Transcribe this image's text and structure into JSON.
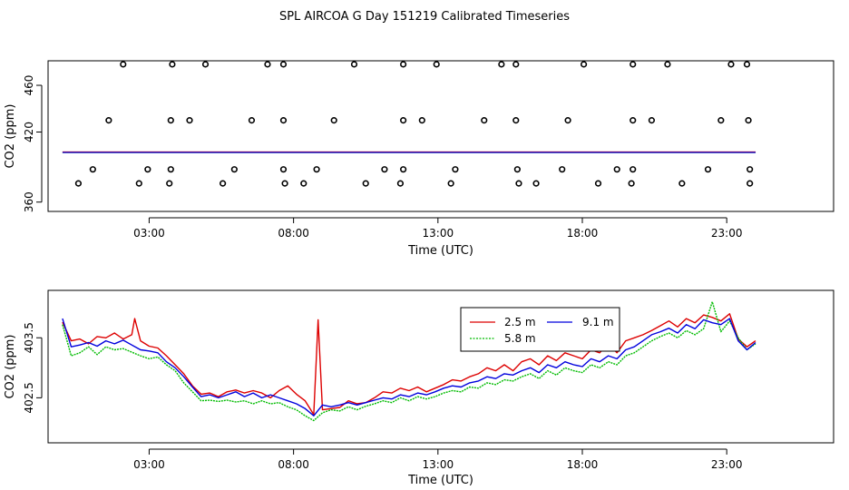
{
  "title": "SPL AIRCOA G  Day 151219  Calibrated Timeseries",
  "colors": {
    "2.5 m": "#dd0000",
    "5.8 m": "#00bb00",
    "9.1 m": "#0000dd",
    "flags": "#000000"
  },
  "chart_data": [
    {
      "type": "scatter",
      "xlabel": "Time (UTC)",
      "ylabel": "CO2 (ppm)",
      "xlim": [
        -0.5,
        26.7
      ],
      "ylim": [
        352,
        481
      ],
      "xticks": [
        3,
        8,
        13,
        18,
        23
      ],
      "xtick_labels": [
        "03:00",
        "08:00",
        "13:00",
        "18:00",
        "23:00"
      ],
      "yticks": [
        360,
        420,
        460
      ],
      "ytick_labels": [
        "360",
        "420",
        "460"
      ],
      "flags": {
        "y478": [
          2.1,
          3.8,
          4.95,
          7.1,
          7.65,
          10.1,
          11.8,
          12.95,
          15.2,
          15.7,
          18.05,
          19.75,
          20.95,
          23.15,
          23.7
        ],
        "y430": [
          1.6,
          3.75,
          4.4,
          6.55,
          7.65,
          9.4,
          11.8,
          12.45,
          14.6,
          15.7,
          17.5,
          19.75,
          20.4,
          22.8,
          23.75
        ],
        "y388": [
          1.05,
          2.95,
          3.75,
          5.95,
          7.65,
          8.8,
          11.15,
          11.8,
          13.6,
          15.75,
          17.3,
          19.2,
          19.75,
          22.35,
          23.8
        ],
        "y376": [
          0.55,
          2.65,
          3.7,
          5.55,
          7.7,
          8.35,
          10.5,
          11.7,
          13.45,
          15.8,
          16.4,
          18.55,
          19.7,
          21.45,
          23.8
        ]
      },
      "baseline_level": 402.5
    },
    {
      "type": "line",
      "xlabel": "Time (UTC)",
      "ylabel": "CO2 (ppm)",
      "xlim": [
        -0.5,
        26.7
      ],
      "ylim": [
        401.75,
        404.29
      ],
      "xticks": [
        3,
        8,
        13,
        18,
        23
      ],
      "xtick_labels": [
        "03:00",
        "08:00",
        "13:00",
        "18:00",
        "23:00"
      ],
      "yticks": [
        402.5,
        403.5
      ],
      "ytick_labels": [
        "402.5",
        "403.5"
      ],
      "legend_position": "top-center",
      "series": [
        {
          "name": "2.5 m",
          "points": [
            [
              0,
              403.76
            ],
            [
              0.3,
              403.45
            ],
            [
              0.6,
              403.48
            ],
            [
              0.9,
              403.4
            ],
            [
              1.2,
              403.52
            ],
            [
              1.5,
              403.5
            ],
            [
              1.8,
              403.58
            ],
            [
              2.1,
              403.48
            ],
            [
              2.4,
              403.55
            ],
            [
              2.5,
              403.82
            ],
            [
              2.7,
              403.45
            ],
            [
              3,
              403.36
            ],
            [
              3.3,
              403.33
            ],
            [
              3.6,
              403.2
            ],
            [
              3.9,
              403.05
            ],
            [
              4.2,
              402.9
            ],
            [
              4.5,
              402.7
            ],
            [
              4.8,
              402.56
            ],
            [
              5.1,
              402.58
            ],
            [
              5.4,
              402.52
            ],
            [
              5.7,
              402.6
            ],
            [
              6,
              402.63
            ],
            [
              6.3,
              402.58
            ],
            [
              6.6,
              402.62
            ],
            [
              6.9,
              402.58
            ],
            [
              7.2,
              402.5
            ],
            [
              7.5,
              402.62
            ],
            [
              7.8,
              402.7
            ],
            [
              8.1,
              402.56
            ],
            [
              8.4,
              402.45
            ],
            [
              8.7,
              402.22
            ],
            [
              8.85,
              403.8
            ],
            [
              9.0,
              402.3
            ],
            [
              9.3,
              402.32
            ],
            [
              9.6,
              402.34
            ],
            [
              9.9,
              402.45
            ],
            [
              10.2,
              402.4
            ],
            [
              10.5,
              402.42
            ],
            [
              10.8,
              402.5
            ],
            [
              11.1,
              402.6
            ],
            [
              11.4,
              402.58
            ],
            [
              11.7,
              402.66
            ],
            [
              12,
              402.62
            ],
            [
              12.3,
              402.68
            ],
            [
              12.6,
              402.6
            ],
            [
              12.9,
              402.66
            ],
            [
              13.2,
              402.72
            ],
            [
              13.5,
              402.8
            ],
            [
              13.8,
              402.78
            ],
            [
              14.1,
              402.85
            ],
            [
              14.4,
              402.9
            ],
            [
              14.7,
              403.0
            ],
            [
              15,
              402.95
            ],
            [
              15.3,
              403.05
            ],
            [
              15.6,
              402.95
            ],
            [
              15.9,
              403.1
            ],
            [
              16.2,
              403.15
            ],
            [
              16.5,
              403.05
            ],
            [
              16.8,
              403.2
            ],
            [
              17.1,
              403.12
            ],
            [
              17.4,
              403.25
            ],
            [
              17.7,
              403.2
            ],
            [
              18,
              403.15
            ],
            [
              18.3,
              403.3
            ],
            [
              18.6,
              403.25
            ],
            [
              18.9,
              403.4
            ],
            [
              19.2,
              403.25
            ],
            [
              19.5,
              403.45
            ],
            [
              19.8,
              403.5
            ],
            [
              20.1,
              403.55
            ],
            [
              20.4,
              403.62
            ],
            [
              20.7,
              403.7
            ],
            [
              21,
              403.78
            ],
            [
              21.3,
              403.68
            ],
            [
              21.6,
              403.82
            ],
            [
              21.9,
              403.75
            ],
            [
              22.2,
              403.88
            ],
            [
              22.5,
              403.84
            ],
            [
              22.8,
              403.78
            ],
            [
              23.1,
              403.9
            ],
            [
              23.4,
              403.48
            ],
            [
              23.7,
              403.35
            ],
            [
              24,
              403.45
            ]
          ]
        },
        {
          "name": "5.8 m",
          "points": [
            [
              0,
              403.72
            ],
            [
              0.3,
              403.2
            ],
            [
              0.6,
              403.25
            ],
            [
              0.9,
              403.35
            ],
            [
              1.2,
              403.22
            ],
            [
              1.5,
              403.35
            ],
            [
              1.8,
              403.3
            ],
            [
              2.1,
              403.32
            ],
            [
              2.4,
              403.26
            ],
            [
              2.7,
              403.2
            ],
            [
              3,
              403.15
            ],
            [
              3.3,
              403.18
            ],
            [
              3.6,
              403.05
            ],
            [
              3.9,
              402.95
            ],
            [
              4.2,
              402.75
            ],
            [
              4.5,
              402.6
            ],
            [
              4.8,
              402.45
            ],
            [
              5.1,
              402.46
            ],
            [
              5.4,
              402.44
            ],
            [
              5.7,
              402.46
            ],
            [
              6,
              402.43
            ],
            [
              6.3,
              402.45
            ],
            [
              6.6,
              402.4
            ],
            [
              6.9,
              402.45
            ],
            [
              7.2,
              402.4
            ],
            [
              7.5,
              402.42
            ],
            [
              7.8,
              402.35
            ],
            [
              8.1,
              402.3
            ],
            [
              8.4,
              402.2
            ],
            [
              8.7,
              402.12
            ],
            [
              9.0,
              402.25
            ],
            [
              9.3,
              402.3
            ],
            [
              9.6,
              402.28
            ],
            [
              9.9,
              402.35
            ],
            [
              10.2,
              402.3
            ],
            [
              10.5,
              402.36
            ],
            [
              10.8,
              402.4
            ],
            [
              11.1,
              402.45
            ],
            [
              11.4,
              402.42
            ],
            [
              11.7,
              402.5
            ],
            [
              12,
              402.45
            ],
            [
              12.3,
              402.52
            ],
            [
              12.6,
              402.48
            ],
            [
              12.9,
              402.52
            ],
            [
              13.2,
              402.58
            ],
            [
              13.5,
              402.62
            ],
            [
              13.8,
              402.6
            ],
            [
              14.1,
              402.68
            ],
            [
              14.4,
              402.66
            ],
            [
              14.7,
              402.75
            ],
            [
              15,
              402.72
            ],
            [
              15.3,
              402.8
            ],
            [
              15.6,
              402.78
            ],
            [
              15.9,
              402.85
            ],
            [
              16.2,
              402.9
            ],
            [
              16.5,
              402.82
            ],
            [
              16.8,
              402.95
            ],
            [
              17.1,
              402.88
            ],
            [
              17.4,
              403.0
            ],
            [
              17.7,
              402.95
            ],
            [
              18,
              402.92
            ],
            [
              18.3,
              403.05
            ],
            [
              18.6,
              403.0
            ],
            [
              18.9,
              403.1
            ],
            [
              19.2,
              403.05
            ],
            [
              19.5,
              403.2
            ],
            [
              19.8,
              403.25
            ],
            [
              20.1,
              403.35
            ],
            [
              20.4,
              403.45
            ],
            [
              20.7,
              403.52
            ],
            [
              21,
              403.58
            ],
            [
              21.3,
              403.5
            ],
            [
              21.6,
              403.62
            ],
            [
              21.9,
              403.55
            ],
            [
              22.2,
              403.65
            ],
            [
              22.5,
              404.1
            ],
            [
              22.8,
              403.6
            ],
            [
              23.1,
              403.78
            ],
            [
              23.4,
              403.5
            ],
            [
              23.7,
              403.3
            ],
            [
              24,
              403.4
            ]
          ]
        },
        {
          "name": "9.1 m",
          "points": [
            [
              0,
              403.82
            ],
            [
              0.3,
              403.35
            ],
            [
              0.6,
              403.38
            ],
            [
              0.9,
              403.42
            ],
            [
              1.2,
              403.36
            ],
            [
              1.5,
              403.45
            ],
            [
              1.8,
              403.4
            ],
            [
              2.1,
              403.46
            ],
            [
              2.4,
              403.38
            ],
            [
              2.7,
              403.3
            ],
            [
              3,
              403.28
            ],
            [
              3.3,
              403.25
            ],
            [
              3.6,
              403.1
            ],
            [
              3.9,
              403.0
            ],
            [
              4.2,
              402.85
            ],
            [
              4.5,
              402.68
            ],
            [
              4.8,
              402.52
            ],
            [
              5.1,
              402.55
            ],
            [
              5.4,
              402.5
            ],
            [
              5.7,
              402.55
            ],
            [
              6,
              402.6
            ],
            [
              6.3,
              402.52
            ],
            [
              6.6,
              402.58
            ],
            [
              6.9,
              402.5
            ],
            [
              7.2,
              402.55
            ],
            [
              7.5,
              402.5
            ],
            [
              7.8,
              402.45
            ],
            [
              8.1,
              402.4
            ],
            [
              8.4,
              402.32
            ],
            [
              8.7,
              402.2
            ],
            [
              9.0,
              402.38
            ],
            [
              9.3,
              402.35
            ],
            [
              9.6,
              402.38
            ],
            [
              9.9,
              402.42
            ],
            [
              10.2,
              402.38
            ],
            [
              10.5,
              402.42
            ],
            [
              10.8,
              402.46
            ],
            [
              11.1,
              402.5
            ],
            [
              11.4,
              402.48
            ],
            [
              11.7,
              402.55
            ],
            [
              12,
              402.52
            ],
            [
              12.3,
              402.58
            ],
            [
              12.6,
              402.55
            ],
            [
              12.9,
              402.6
            ],
            [
              13.2,
              402.66
            ],
            [
              13.5,
              402.7
            ],
            [
              13.8,
              402.68
            ],
            [
              14.1,
              402.75
            ],
            [
              14.4,
              402.78
            ],
            [
              14.7,
              402.85
            ],
            [
              15,
              402.82
            ],
            [
              15.3,
              402.9
            ],
            [
              15.6,
              402.88
            ],
            [
              15.9,
              402.95
            ],
            [
              16.2,
              403.0
            ],
            [
              16.5,
              402.92
            ],
            [
              16.8,
              403.05
            ],
            [
              17.1,
              403.0
            ],
            [
              17.4,
              403.1
            ],
            [
              17.7,
              403.05
            ],
            [
              18,
              403.02
            ],
            [
              18.3,
              403.15
            ],
            [
              18.6,
              403.1
            ],
            [
              18.9,
              403.2
            ],
            [
              19.2,
              403.15
            ],
            [
              19.5,
              403.3
            ],
            [
              19.8,
              403.35
            ],
            [
              20.1,
              403.45
            ],
            [
              20.4,
              403.55
            ],
            [
              20.7,
              403.6
            ],
            [
              21,
              403.66
            ],
            [
              21.3,
              403.58
            ],
            [
              21.6,
              403.72
            ],
            [
              21.9,
              403.65
            ],
            [
              22.2,
              403.8
            ],
            [
              22.5,
              403.75
            ],
            [
              22.8,
              403.72
            ],
            [
              23.1,
              403.82
            ],
            [
              23.4,
              403.45
            ],
            [
              23.7,
              403.3
            ],
            [
              24,
              403.42
            ]
          ]
        }
      ]
    }
  ]
}
